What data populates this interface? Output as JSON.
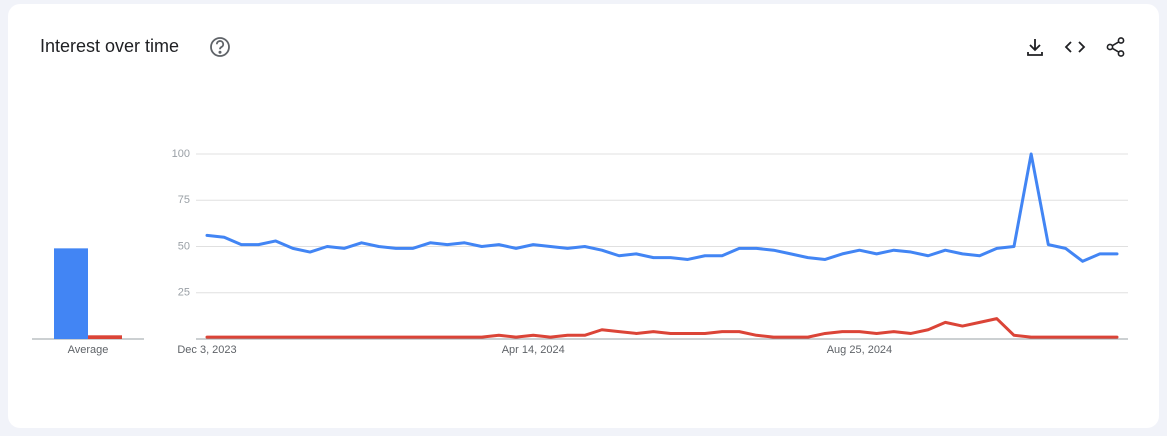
{
  "chart_data": {
    "type": "line",
    "title": "Interest over time",
    "average_label": "Average",
    "categories": [
      "Dec 3, 2023",
      null,
      null,
      null,
      null,
      null,
      null,
      null,
      null,
      null,
      null,
      null,
      null,
      null,
      null,
      null,
      null,
      null,
      null,
      "Apr 14, 2024",
      null,
      null,
      null,
      null,
      null,
      null,
      null,
      null,
      null,
      null,
      null,
      null,
      null,
      null,
      null,
      null,
      null,
      null,
      "Aug 25, 2024",
      null,
      null,
      null,
      null,
      null,
      null,
      null,
      null,
      null,
      null,
      null,
      null,
      null,
      null,
      null
    ],
    "series": [
      {
        "color": "#4285f4",
        "average": 49,
        "values": [
          56,
          55,
          51,
          51,
          53,
          49,
          47,
          50,
          49,
          52,
          50,
          49,
          49,
          52,
          51,
          52,
          50,
          51,
          49,
          51,
          50,
          49,
          50,
          48,
          45,
          46,
          44,
          44,
          43,
          45,
          45,
          49,
          49,
          48,
          46,
          44,
          43,
          46,
          48,
          46,
          48,
          47,
          45,
          48,
          46,
          45,
          49,
          50,
          100,
          51,
          49,
          42,
          46,
          46
        ]
      },
      {
        "color": "#db4437",
        "average": 2,
        "values": [
          1,
          1,
          1,
          1,
          1,
          1,
          1,
          1,
          1,
          1,
          1,
          1,
          1,
          1,
          1,
          1,
          1,
          2,
          1,
          2,
          1,
          2,
          2,
          5,
          4,
          3,
          4,
          3,
          3,
          3,
          4,
          4,
          2,
          1,
          1,
          1,
          3,
          4,
          4,
          3,
          4,
          3,
          5,
          9,
          7,
          9,
          11,
          2,
          1,
          1,
          1,
          1,
          1,
          1
        ]
      }
    ],
    "ylim": [
      0,
      100
    ],
    "yticks": [
      25,
      50,
      75,
      100
    ],
    "grid": true
  }
}
